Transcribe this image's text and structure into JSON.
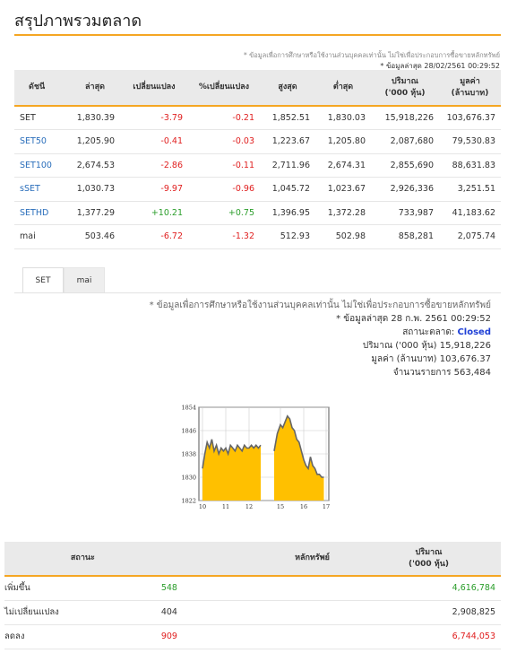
{
  "page_title": "สรุปภาพรวมตลาด",
  "top_note": "* ข้อมูลเพื่อการศึกษาหรือใช้งานส่วนบุคคลเท่านั้น ไม่ใช่เพื่อประกอบการซื้อขายหลักทรัพย์",
  "top_updated": "* ข้อมูลล่าสุด 28/02/2561 00:29:52",
  "index_table": {
    "headers": [
      "ดัชนี",
      "ล่าสุด",
      "เปลี่ยนแปลง",
      "%เปลี่ยนแปลง",
      "สูงสุด",
      "ต่ำสุด",
      "ปริมาณ\n('000 หุ้น)",
      "มูลค่า\n(ล้านบาท)"
    ],
    "rows": [
      [
        "SET",
        "1,830.39",
        "-3.79",
        "-0.21",
        "1,852.51",
        "1,830.03",
        "15,918,226",
        "103,676.37"
      ],
      [
        "SET50",
        "1,205.90",
        "-0.41",
        "-0.03",
        "1,223.67",
        "1,205.80",
        "2,087,680",
        "79,530.83"
      ],
      [
        "SET100",
        "2,674.53",
        "-2.86",
        "-0.11",
        "2,711.96",
        "2,674.31",
        "2,855,690",
        "88,631.83"
      ],
      [
        "sSET",
        "1,030.73",
        "-9.97",
        "-0.96",
        "1,045.72",
        "1,023.67",
        "2,926,336",
        "3,251.51"
      ],
      [
        "SETHD",
        "1,377.29",
        "+10.21",
        "+0.75",
        "1,396.95",
        "1,372.28",
        "733,987",
        "41,183.62"
      ],
      [
        "mai",
        "503.46",
        "-6.72",
        "-1.32",
        "512.93",
        "502.98",
        "858,281",
        "2,075.74"
      ]
    ]
  },
  "tabs": [
    "SET",
    "mai"
  ],
  "info": {
    "note": "* ข้อมูลเพื่อการศึกษาหรือใช้งานส่วนบุคคลเท่านั้น ไม่ใช่เพื่อประกอบการซื้อขายหลักทรัพย์",
    "updated": "* ข้อมูลล่าสุด 28 ก.พ. 2561 00:29:52",
    "status_label": "สถานะตลาด:",
    "status_value": "Closed",
    "volume_label": "ปริมาณ ('000 หุ้น)",
    "volume_value": "15,918,226",
    "value_label": "มูลค่า (ล้านบาท)",
    "value_value": "103,676.37",
    "trades_label": "จำนวนรายการ",
    "trades_value": "563,484"
  },
  "chart_data": {
    "type": "area",
    "y_ticks": [
      "1854",
      "1846",
      "1838",
      "1830",
      "1822"
    ],
    "x_ticks": [
      "10",
      "11",
      "12",
      "15",
      "16",
      "17"
    ],
    "ylim": [
      1822,
      1854
    ],
    "segments": [
      {
        "x": [
          10.0,
          10.1,
          10.2,
          10.3,
          10.4,
          10.5,
          10.6,
          10.7,
          10.8,
          10.9,
          11.0,
          11.1,
          11.2,
          11.3,
          11.4,
          11.5,
          11.6,
          11.7,
          11.8,
          11.9,
          12.0,
          12.1,
          12.2,
          12.3,
          12.4,
          12.5
        ],
        "y": [
          1833,
          1838,
          1842,
          1840,
          1843,
          1839,
          1841,
          1838,
          1840,
          1839,
          1840,
          1838,
          1841,
          1840,
          1839,
          1841,
          1840,
          1839,
          1841,
          1840,
          1840,
          1841,
          1840,
          1841,
          1840,
          1841
        ]
      },
      {
        "x": [
          14.8,
          14.9,
          15.0,
          15.1,
          15.2,
          15.3,
          15.4,
          15.5,
          15.6,
          15.7,
          15.8,
          15.9,
          16.0,
          16.1,
          16.2,
          16.3,
          16.4,
          16.5,
          16.6,
          16.7,
          16.8,
          16.9
        ],
        "y": [
          1839,
          1845,
          1848,
          1847,
          1849,
          1851,
          1850,
          1847,
          1846,
          1843,
          1842,
          1839,
          1836,
          1834,
          1833,
          1837,
          1834,
          1833,
          1831,
          1831,
          1830,
          1830
        ]
      }
    ],
    "colors": {
      "fill": "#ffc000",
      "line": "#666666"
    }
  },
  "summary_table": {
    "headers": [
      "สถานะ",
      "หลักทรัพย์",
      "ปริมาณ\n('000 หุ้น)"
    ],
    "rows": [
      [
        "เพิ่มขึ้น",
        "548",
        "4,616,784"
      ],
      [
        "ไม่เปลี่ยนแปลง",
        "404",
        "2,908,825"
      ],
      [
        "ลดลง",
        "909",
        "6,744,053"
      ]
    ]
  },
  "colors": {
    "accent": "#f5a623",
    "link": "#2a6ebb",
    "negative": "#e02020",
    "positive": "#2a9d2a",
    "closed": "#1e3fd6"
  }
}
